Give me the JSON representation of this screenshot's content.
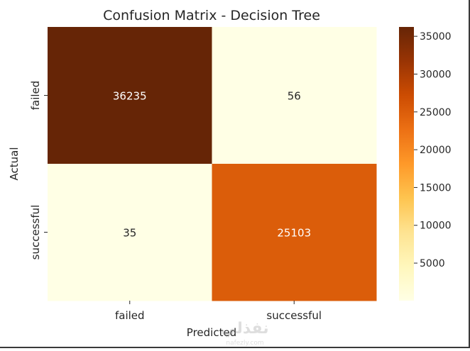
{
  "chart_data": {
    "type": "heatmap",
    "title": "Confusion Matrix - Decision Tree",
    "xlabel": "Predicted",
    "ylabel": "Actual",
    "x_categories": [
      "failed",
      "successful"
    ],
    "y_categories": [
      "failed",
      "successful"
    ],
    "values": [
      [
        36235,
        56
      ],
      [
        35,
        25103
      ]
    ],
    "colormap": "YlOrBr",
    "colorbar": {
      "min": 35,
      "max": 36235,
      "ticks": [
        5000,
        10000,
        15000,
        20000,
        25000,
        30000,
        35000
      ]
    },
    "annotation_colors": {
      "dark": "#ffffff",
      "light": "#262626"
    }
  },
  "watermark": {
    "text": "نفذلي",
    "subtext": "nafezly.com"
  }
}
